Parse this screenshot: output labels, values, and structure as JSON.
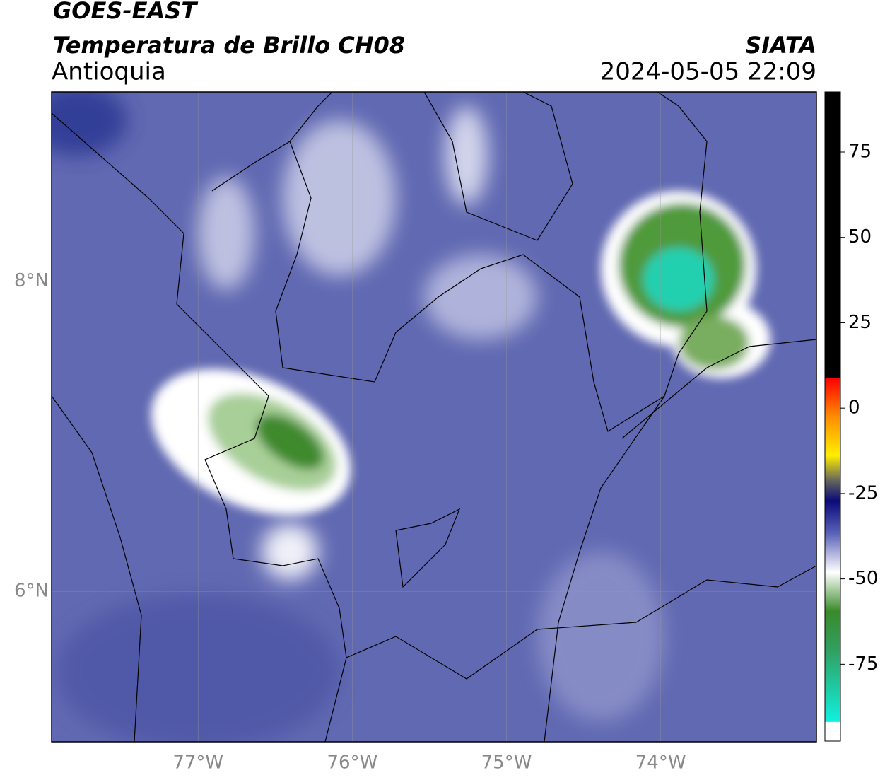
{
  "header": {
    "source": "GOES-EAST",
    "product": "Temperatura de Brillo CH08",
    "region": "Antioquia",
    "agency": "SIATA",
    "timestamp": "2024-05-05 22:09"
  },
  "map": {
    "xlim": [
      -77.95,
      -72.99
    ],
    "ylim": [
      5.03,
      9.22
    ],
    "xticks": [
      {
        "value": -77,
        "label": "77°W"
      },
      {
        "value": -76,
        "label": "76°W"
      },
      {
        "value": -75,
        "label": "75°W"
      },
      {
        "value": -74,
        "label": "74°W"
      }
    ],
    "yticks": [
      {
        "value": 8,
        "label": "8°N"
      },
      {
        "value": 6,
        "label": "6°N"
      }
    ]
  },
  "colorbar": {
    "lim": [
      -97.5,
      92.6
    ],
    "ticks": [
      75,
      50,
      25,
      0,
      -25,
      -50,
      -75
    ]
  }
}
